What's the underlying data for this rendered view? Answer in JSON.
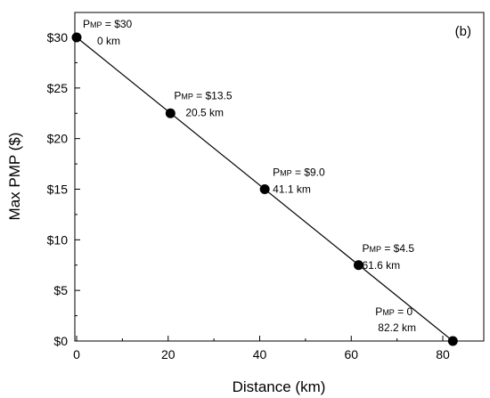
{
  "chart_data": {
    "type": "scatter",
    "panel_label": "(b)",
    "xlabel": "Distance (km)",
    "ylabel": "Max PMP ($)",
    "xlim": [
      0,
      85
    ],
    "ylim": [
      0,
      32
    ],
    "x_ticks": [
      0,
      20,
      40,
      60,
      80
    ],
    "y_ticks": [
      0,
      5,
      10,
      15,
      20,
      25,
      30
    ],
    "x_tick_labels": [
      "0",
      "20",
      "40",
      "60",
      "80"
    ],
    "y_tick_labels": [
      "$0",
      "$5",
      "$10",
      "$15",
      "$20",
      "$25",
      "$30"
    ],
    "grid": false,
    "line": {
      "x": [
        0,
        82.2
      ],
      "y": [
        30,
        0
      ]
    },
    "points": [
      {
        "x": 0,
        "y": 30,
        "label_symbol": "P",
        "label_sub": "MP",
        "label_value": " = $30",
        "label_distance": "0 km"
      },
      {
        "x": 20.5,
        "y": 22.5,
        "label_symbol": "P",
        "label_sub": "MP",
        "label_value": " = $13.5",
        "label_distance": "20.5 km"
      },
      {
        "x": 41.1,
        "y": 15,
        "label_symbol": "P",
        "label_sub": "MP",
        "label_value": " = $9.0",
        "label_distance": "41.1 km"
      },
      {
        "x": 61.6,
        "y": 7.5,
        "label_symbol": "P",
        "label_sub": "MP",
        "label_value": " = $4.5",
        "label_distance": "61.6 km"
      },
      {
        "x": 82.2,
        "y": 0,
        "label_symbol": "P",
        "label_sub": "MP",
        "label_value": " = 0",
        "label_distance": "82.2 km"
      }
    ],
    "colors": {
      "line": "#000000",
      "marker": "#000000",
      "axes": "#000000"
    }
  }
}
